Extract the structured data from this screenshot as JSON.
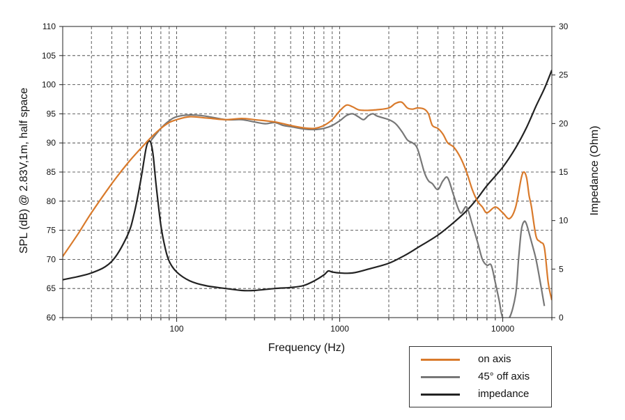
{
  "chart_data": {
    "type": "line",
    "xlabel": "Frequency (Hz)",
    "ylabel": "SPL (dB) @ 2.83V,1m, half space",
    "y2label": "Impedance (Ohm)",
    "x_scale": "log",
    "xlim": [
      20,
      20000
    ],
    "ylim": [
      60,
      110
    ],
    "y2lim": [
      0,
      30
    ],
    "x_tick_labels": [
      {
        "value": 100,
        "label": "100"
      },
      {
        "value": 1000,
        "label": "1000"
      },
      {
        "value": 10000,
        "label": "10000"
      }
    ],
    "y_ticks": [
      60,
      65,
      70,
      75,
      80,
      85,
      90,
      95,
      100,
      105,
      110
    ],
    "y2_ticks": [
      0,
      5,
      10,
      15,
      20,
      25,
      30
    ],
    "grid": true,
    "legend_position": "bottom-right, below plot",
    "series": [
      {
        "name": "on axis",
        "axis": "left",
        "color": "#d97a2b",
        "x": [
          20,
          25,
          30,
          40,
          50,
          60,
          70,
          80,
          90,
          100,
          120,
          150,
          200,
          250,
          300,
          350,
          400,
          450,
          500,
          600,
          700,
          800,
          900,
          1000,
          1100,
          1200,
          1300,
          1400,
          1500,
          1700,
          2000,
          2200,
          2400,
          2600,
          2800,
          3000,
          3300,
          3500,
          3700,
          4000,
          4300,
          4600,
          5000,
          5500,
          6000,
          6500,
          7000,
          7500,
          8000,
          9000,
          10000,
          11000,
          12000,
          13000,
          13500,
          14000,
          14500,
          15000,
          16000,
          17000,
          18000,
          19000,
          20000
        ],
        "values": [
          70.5,
          74.5,
          78,
          83,
          86.5,
          89,
          91,
          92.5,
          93.5,
          94,
          94.5,
          94.3,
          94,
          94.2,
          94,
          93.8,
          93.6,
          93.3,
          93,
          92.6,
          92.5,
          93,
          94,
          95.5,
          96.5,
          96.2,
          95.7,
          95.6,
          95.6,
          95.7,
          96,
          96.8,
          97,
          96,
          95.8,
          96,
          95.8,
          95,
          93,
          92.5,
          91.5,
          90,
          89.3,
          87.5,
          85,
          82,
          80,
          79,
          78,
          79,
          78,
          77,
          79,
          84,
          85,
          84,
          81,
          79,
          74,
          73,
          72,
          66,
          63
        ]
      },
      {
        "name": "45° off axis",
        "axis": "left",
        "color": "#777777",
        "x": [
          70,
          80,
          90,
          100,
          120,
          150,
          200,
          250,
          300,
          350,
          400,
          450,
          500,
          600,
          700,
          800,
          900,
          1000,
          1100,
          1200,
          1300,
          1400,
          1500,
          1600,
          1700,
          2000,
          2200,
          2400,
          2600,
          2800,
          3000,
          3300,
          3500,
          3700,
          4000,
          4300,
          4600,
          5000,
          5500,
          6000,
          6500,
          7000,
          7500,
          8000,
          8500,
          9000,
          9500,
          10000,
          11000,
          12000,
          12500,
          13000,
          13500,
          14000,
          15000,
          16000,
          17000,
          18000
        ],
        "values": [
          90.5,
          92.5,
          93.8,
          94.5,
          94.8,
          94.6,
          94,
          94,
          93.6,
          93.3,
          93.5,
          93,
          92.8,
          92.4,
          92.3,
          92.5,
          93,
          93.8,
          94.7,
          95,
          94.5,
          94,
          94.7,
          95,
          94.6,
          94,
          93.3,
          92,
          90.5,
          90,
          89,
          85,
          83.5,
          83,
          82,
          83.5,
          84,
          81,
          78,
          79,
          76,
          73,
          70,
          69,
          69,
          66,
          63,
          60,
          60,
          64,
          70,
          75,
          76.5,
          76,
          73,
          70,
          66,
          62
        ]
      },
      {
        "name": "impedance",
        "axis": "right",
        "color": "#222222",
        "x": [
          20,
          30,
          40,
          50,
          55,
          60,
          65,
          68,
          70,
          72,
          75,
          80,
          85,
          90,
          100,
          120,
          150,
          200,
          250,
          300,
          400,
          500,
          600,
          700,
          800,
          850,
          900,
          1000,
          1200,
          1500,
          2000,
          2500,
          3000,
          4000,
          5000,
          6000,
          7000,
          8000,
          10000,
          12000,
          14000,
          16000,
          18000,
          20000
        ],
        "values": [
          3.9,
          4.6,
          5.8,
          8.5,
          10.8,
          14,
          17.5,
          18.2,
          17.8,
          16.5,
          13.5,
          9.5,
          7.2,
          5.8,
          4.7,
          3.8,
          3.3,
          3.0,
          2.8,
          2.8,
          3.0,
          3.1,
          3.3,
          3.8,
          4.4,
          4.8,
          4.7,
          4.6,
          4.6,
          5.0,
          5.6,
          6.4,
          7.2,
          8.5,
          9.8,
          11,
          12.3,
          13.6,
          15.5,
          17.5,
          19.6,
          21.8,
          23.6,
          25.5
        ]
      }
    ]
  }
}
